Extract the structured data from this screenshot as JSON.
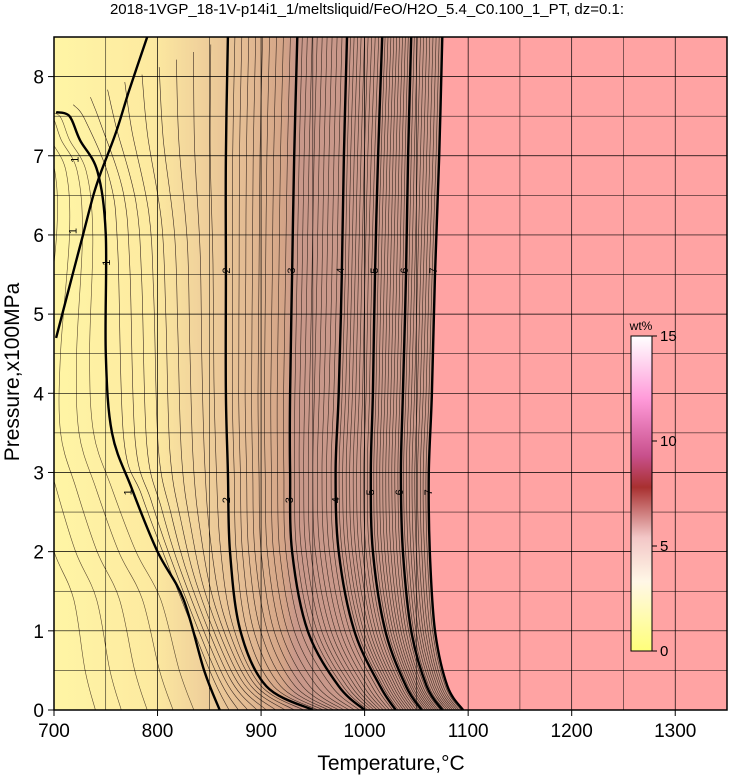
{
  "chart_data": {
    "type": "contour",
    "title": "2018-1VGP_18-1V-p14i1_1/meltsliquid/FeO/H2O_5.4_C0.100_1_PT, dz=0.1:",
    "xlabel": "Temperature,°C",
    "ylabel": "Pressure,x100MPa",
    "xlim": [
      700,
      1350
    ],
    "ylim": [
      0,
      8.5
    ],
    "xticks": [
      700,
      800,
      900,
      1000,
      1100,
      1200,
      1300
    ],
    "yticks": [
      0,
      1,
      2,
      3,
      4,
      5,
      6,
      7,
      8
    ],
    "grid": true,
    "colorbar": {
      "unit": "wt%",
      "range": [
        0,
        15
      ],
      "ticks": [
        0,
        5,
        10,
        15
      ],
      "placement": "right-inside"
    },
    "colors": {
      "low": "#fff5a5",
      "mid": "#d2a287",
      "high": "#ffa3a3",
      "colorbar_stops": [
        "#ffff7a",
        "#fffbe0",
        "#f4cdcd",
        "#8b0000",
        "#ff9ad9",
        "#ffffff"
      ]
    },
    "liquidus_region_label": "",
    "contour_levels": [
      {
        "level": 1,
        "label": "1",
        "points": [
          [
            702,
            7.55
          ],
          [
            715,
            7.5
          ],
          [
            725,
            7.2
          ],
          [
            742,
            6.8
          ],
          [
            750,
            6.0
          ],
          [
            750,
            4.5
          ],
          [
            756,
            3.5
          ],
          [
            775,
            2.8
          ],
          [
            800,
            2.0
          ],
          [
            825,
            1.4
          ],
          [
            845,
            0.5
          ],
          [
            860,
            0.0
          ]
        ]
      },
      {
        "level": 1,
        "label": "1",
        "points": [
          [
            790,
            8.5
          ],
          [
            772,
            7.8
          ],
          [
            760,
            7.3
          ],
          [
            745,
            6.78
          ],
          [
            738,
            6.5
          ],
          [
            728,
            6.0
          ],
          [
            718,
            5.5
          ],
          [
            708,
            5.0
          ],
          [
            702,
            4.7
          ]
        ]
      },
      {
        "level": 2,
        "label": "2",
        "points": [
          [
            868,
            8.5
          ],
          [
            866,
            7.0
          ],
          [
            866,
            5.5
          ],
          [
            866,
            4.0
          ],
          [
            868,
            3.0
          ],
          [
            870,
            2.0
          ],
          [
            880,
            1.0
          ],
          [
            905,
            0.3
          ],
          [
            950,
            0.0
          ]
        ]
      },
      {
        "level": 3,
        "label": "3",
        "points": [
          [
            935,
            8.5
          ],
          [
            932,
            7.0
          ],
          [
            930,
            5.5
          ],
          [
            928,
            4.0
          ],
          [
            928,
            3.0
          ],
          [
            930,
            2.0
          ],
          [
            945,
            1.0
          ],
          [
            975,
            0.3
          ],
          [
            1000,
            0.0
          ]
        ]
      },
      {
        "level": 4,
        "label": "4",
        "points": [
          [
            983,
            8.5
          ],
          [
            980,
            7.0
          ],
          [
            978,
            5.5
          ],
          [
            975,
            4.0
          ],
          [
            972,
            3.0
          ],
          [
            975,
            2.0
          ],
          [
            990,
            1.0
          ],
          [
            1015,
            0.3
          ],
          [
            1030,
            0.0
          ]
        ]
      },
      {
        "level": 5,
        "label": "5",
        "points": [
          [
            1017,
            8.5
          ],
          [
            1013,
            7.0
          ],
          [
            1010,
            5.5
          ],
          [
            1008,
            4.0
          ],
          [
            1006,
            3.0
          ],
          [
            1008,
            2.0
          ],
          [
            1020,
            1.0
          ],
          [
            1040,
            0.3
          ],
          [
            1055,
            0.0
          ]
        ]
      },
      {
        "level": 6,
        "label": "6",
        "points": [
          [
            1045,
            8.5
          ],
          [
            1042,
            7.0
          ],
          [
            1040,
            5.5
          ],
          [
            1037,
            4.0
          ],
          [
            1035,
            3.0
          ],
          [
            1037,
            2.0
          ],
          [
            1045,
            1.0
          ],
          [
            1060,
            0.3
          ],
          [
            1075,
            0.0
          ]
        ]
      },
      {
        "level": 7,
        "label": "7",
        "points": [
          [
            1075,
            8.5
          ],
          [
            1072,
            7.0
          ],
          [
            1068,
            5.5
          ],
          [
            1065,
            4.0
          ],
          [
            1062,
            3.0
          ],
          [
            1063,
            2.0
          ],
          [
            1068,
            1.0
          ],
          [
            1080,
            0.3
          ],
          [
            1095,
            0.0
          ]
        ]
      }
    ],
    "contour_labels": [
      {
        "text": "1",
        "x": 720,
        "y": 6.95
      },
      {
        "text": "1",
        "x": 718,
        "y": 6.05
      },
      {
        "text": "1",
        "x": 750,
        "y": 5.65
      },
      {
        "text": "1",
        "x": 771,
        "y": 2.75
      },
      {
        "text": "2",
        "x": 866,
        "y": 5.55
      },
      {
        "text": "2",
        "x": 866,
        "y": 2.65
      },
      {
        "text": "3",
        "x": 929,
        "y": 5.55
      },
      {
        "text": "3",
        "x": 927,
        "y": 2.65
      },
      {
        "text": "4",
        "x": 976,
        "y": 5.55
      },
      {
        "text": "4",
        "x": 972,
        "y": 2.65
      },
      {
        "text": "5",
        "x": 1009,
        "y": 5.55
      },
      {
        "text": "5",
        "x": 1005,
        "y": 2.75
      },
      {
        "text": "6",
        "x": 1038,
        "y": 5.55
      },
      {
        "text": "6",
        "x": 1033,
        "y": 2.75
      },
      {
        "text": "7",
        "x": 1066,
        "y": 5.55
      },
      {
        "text": "7",
        "x": 1061,
        "y": 2.75
      }
    ]
  }
}
